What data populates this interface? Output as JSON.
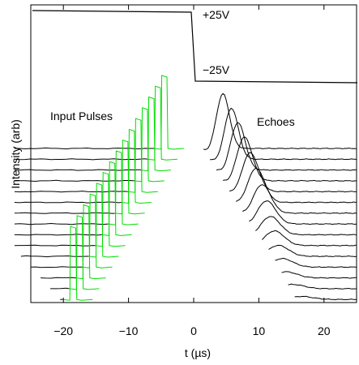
{
  "chart_data": {
    "type": "line",
    "title": "",
    "xlabel": "t (µs)",
    "ylabel": "Intensity (arb)",
    "xlim": [
      -25,
      25
    ],
    "xticks": [
      -20,
      -10,
      0,
      10,
      20
    ],
    "yticks": false,
    "grid": false,
    "annotations": [
      "+25V",
      "−25V",
      "Input Pulses",
      "Echoes"
    ],
    "colors": {
      "input_pulses": "#00dd00",
      "echoes": "#000000",
      "gate": "#000000"
    },
    "gate_trace": {
      "high": "+25V",
      "low": "−25V",
      "switch_at": 0,
      "unit": "µs"
    },
    "trace_start_us": [
      -27.5,
      -27.5,
      -27.5,
      -27.5,
      -27.5,
      -27.5,
      -27.5,
      -27.5,
      -27.5,
      -27.5,
      -26.5,
      -25,
      -23.5,
      -22,
      -20.5
    ],
    "input_pulse_center_us": [
      -4.5,
      -5.5,
      -6.5,
      -7.5,
      -8.5,
      -9.5,
      -10.5,
      -11.5,
      -12.5,
      -13.5,
      -14.5,
      -15.5,
      -16.5,
      -17.5,
      -18.5
    ],
    "input_pulse_end_us": [
      -1.5,
      -2.5,
      -3.5,
      -4.5,
      -5.5,
      -6.5,
      -7.5,
      -8.5,
      -9.5,
      -10.5,
      -11.5,
      -12.5,
      -13.5,
      -14.5,
      -15.5
    ],
    "echo_start_us": [
      1.5,
      2.5,
      3.5,
      4.5,
      5.5,
      6.5,
      7.5,
      8.5,
      9.5,
      10.5,
      11.5,
      12.5,
      13.5,
      14.5,
      15.5
    ],
    "echo_peak_us": [
      4.5,
      5.8,
      6.8,
      7.8,
      8.7,
      9.6,
      10.5,
      11.2,
      11.8,
      12.4,
      13,
      13.6,
      14.2,
      15.2,
      16.5
    ],
    "echo_amplitude_arb": [
      0.9,
      0.84,
      0.78,
      0.72,
      0.64,
      0.56,
      0.47,
      0.38,
      0.3,
      0.24,
      0.18,
      0.14,
      0.1,
      0.07,
      0.05
    ]
  }
}
